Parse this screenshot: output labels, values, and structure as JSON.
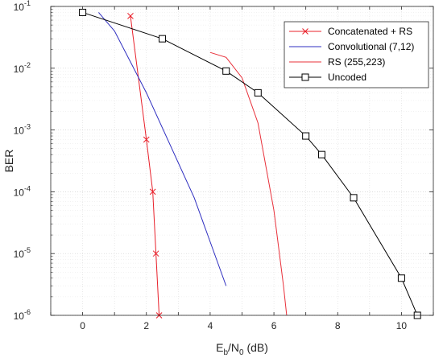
{
  "chart_data": {
    "type": "line",
    "title": "",
    "xlabel": {
      "base": "E",
      "sub1": "b",
      "mid": "/N",
      "sub2": "0",
      "tail": " (dB)"
    },
    "ylabel": "BER",
    "xlim": [
      -1,
      11
    ],
    "ylim_log10": [
      -6,
      -1
    ],
    "y_scale": "log",
    "x_ticks": [
      "0",
      "2",
      "4",
      "6",
      "8",
      "10"
    ],
    "x_tick_values": [
      0,
      2,
      4,
      6,
      8,
      10
    ],
    "y_ticks": [
      {
        "exp": -1,
        "base": "10",
        "sup": "-1"
      },
      {
        "exp": -2,
        "base": "10",
        "sup": "-2"
      },
      {
        "exp": -3,
        "base": "10",
        "sup": "-3"
      },
      {
        "exp": -4,
        "base": "10",
        "sup": "-4"
      },
      {
        "exp": -5,
        "base": "10",
        "sup": "-5"
      },
      {
        "exp": -6,
        "base": "10",
        "sup": "-6"
      }
    ],
    "grid": true,
    "legend_position": "top-right",
    "series": [
      {
        "name": "Concatenated + RS",
        "color": "#e8202a",
        "marker": "x",
        "x": [
          1.5,
          2.0,
          2.2,
          2.3,
          2.4
        ],
        "y": [
          0.07,
          0.0007,
          0.0001,
          1e-05,
          1e-06
        ]
      },
      {
        "name": "Convolutional (7,12)",
        "color": "#2f2fc0",
        "marker": "none",
        "x": [
          0.5,
          1.0,
          2.0,
          3.5,
          4.5
        ],
        "y": [
          0.08,
          0.04,
          0.004,
          8e-05,
          3e-06
        ]
      },
      {
        "name": "RS (255,223)",
        "color": "#e8303a",
        "marker": "none",
        "x": [
          4.0,
          4.5,
          5.0,
          5.5,
          6.0,
          6.3,
          6.4
        ],
        "y": [
          0.018,
          0.015,
          0.007,
          0.0013,
          5e-05,
          3e-06,
          1e-06
        ]
      },
      {
        "name": "Uncoded",
        "color": "#000000",
        "marker": "square",
        "x": [
          0.0,
          2.5,
          4.5,
          5.5,
          7.0,
          7.5,
          8.5,
          10.0,
          10.5
        ],
        "y": [
          0.08,
          0.03,
          0.009,
          0.004,
          0.0008,
          0.0004,
          8e-05,
          4e-06,
          1e-06
        ]
      }
    ]
  }
}
